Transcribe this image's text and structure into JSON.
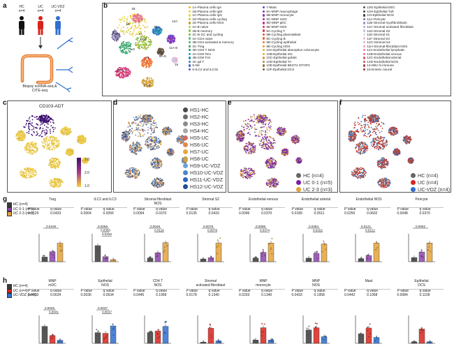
{
  "panel_labels": {
    "a": "a",
    "b": "b",
    "c": "c",
    "d": "d",
    "e": "e",
    "f": "f",
    "g": "g",
    "h": "h"
  },
  "panel_a": {
    "groups": [
      {
        "label": "HC",
        "n": "n=4",
        "color": "#111111"
      },
      {
        "label": "UC",
        "n": "n=4",
        "color": "#d9241c"
      },
      {
        "label": "UC-VDZ",
        "n": "n=4",
        "color": "#2f6fd1"
      }
    ],
    "caption_line1": "Biopsy scRNA-seq &",
    "caption_line2": "CITE-seq"
  },
  "panel_b": {
    "umap_labels": [
      "1B",
      "12A",
      "6A",
      "1D",
      "1A",
      "3C",
      "4A-E",
      "11A-E",
      "6A-E",
      "2B",
      "1-E",
      "8A-E",
      "15",
      "2A-C"
    ],
    "legend_col1": [
      {
        "t": "1A-Plasma cells IgA",
        "c": "#e6b800"
      },
      {
        "t": "1B-Plasma cells IgM",
        "c": "#f2d13a"
      },
      {
        "t": "1C-Plasma cells IgG",
        "c": "#d8e04a"
      },
      {
        "t": "1D-Plasma cells cycling",
        "c": "#c9c12b"
      },
      {
        "t": "1E-Plasma cells NOS",
        "c": "#b4a21e"
      },
      {
        "t": "2A-B naive",
        "c": "#a7d14b"
      },
      {
        "t": "2B-B memory",
        "c": "#8cc43c"
      },
      {
        "t": "2C-B GC and cycling",
        "c": "#6fb52e"
      },
      {
        "t": "3A-CD4 naive",
        "c": "#5fbf8a"
      },
      {
        "t": "3B-CD4 activated & memory",
        "c": "#3fae6b"
      },
      {
        "t": "3C-Treg",
        "c": "#2a9a58"
      },
      {
        "t": "3D-CD4 T NOS",
        "c": "#1f8a6a"
      },
      {
        "t": "4A-CD8 Tem",
        "c": "#1aa3a0"
      },
      {
        "t": "4B-CD8 Trm",
        "c": "#1e8fb5"
      },
      {
        "t": "4C-gd T",
        "c": "#2877c8"
      },
      {
        "t": "5-NK",
        "c": "#3f64c9"
      },
      {
        "t": "6-ILC2 and ILC3s",
        "c": "#5a5ad0"
      }
    ],
    "legend_col2": [
      {
        "t": "7-Mast",
        "c": "#6f3fc4"
      },
      {
        "t": "8A-MNP macrophage",
        "c": "#8a2fb8"
      },
      {
        "t": "8B-MNP monocyte",
        "c": "#a12aa8"
      },
      {
        "t": "8C-MNP mDC",
        "c": "#b82a96"
      },
      {
        "t": "8D-MNP pDC",
        "c": "#c92a80"
      },
      {
        "t": "8E-MNP NOS",
        "c": "#d82a68"
      },
      {
        "t": "9A-Cycling T",
        "c": "#e3334f"
      },
      {
        "t": "9B-Cycling plasmablast",
        "c": "#e84a3a"
      },
      {
        "t": "9C-Cycling B",
        "c": "#ec6330"
      },
      {
        "t": "9D-Cycling epithelial",
        "c": "#ef7b2a"
      },
      {
        "t": "9E-Cycling NOS",
        "c": "#f19228"
      },
      {
        "t": "10A-Epithelial absorptive colonocyte",
        "c": "#f3a72a"
      },
      {
        "t": "10B-Epithelial ISC",
        "c": "#e0b03a"
      },
      {
        "t": "10C-Epithelial goblet",
        "c": "#c7a040"
      },
      {
        "t": "10D-Epithelial TA",
        "c": "#a98b3e"
      },
      {
        "t": "10E-Epithelial BEST4 OTOP2",
        "c": "#8d7440"
      },
      {
        "t": "10F-Epithelial DCS",
        "c": "#735f42"
      }
    ],
    "legend_col3": [
      {
        "t": "10G-Epithelial EEC",
        "c": "#5e4f44"
      },
      {
        "t": "10H-Epithelial Tuft",
        "c": "#4d4248"
      },
      {
        "t": "10I-Epithelial NOS",
        "c": "#3d3a4e"
      },
      {
        "t": "11A-Pericyte",
        "c": "#7a6fa8"
      },
      {
        "t": "11B-Stromal myofibroblasts",
        "c": "#9a8fc6"
      },
      {
        "t": "11C-Stromal activated fibroblast",
        "c": "#b0a6d6"
      },
      {
        "t": "11D-Stromal S2",
        "c": "#c6bee2"
      },
      {
        "t": "11E-Stromal S1",
        "c": "#d8d2ea"
      },
      {
        "t": "11F-Stromal S3",
        "c": "#e8c5d8"
      },
      {
        "t": "11G-Stromal S4",
        "c": "#eeaec6"
      },
      {
        "t": "11H-Stromal-fibroblast NOS",
        "c": "#f197b2"
      },
      {
        "t": "12A-Endothelial lymphatic",
        "c": "#ef7f9c"
      },
      {
        "t": "12B-Endothelial venous",
        "c": "#e86a86"
      },
      {
        "t": "12C-Endothelial arterial",
        "c": "#d95a70"
      },
      {
        "t": "12D-Endothelial NOS",
        "c": "#c24e5c"
      },
      {
        "t": "14-Mito hi immune",
        "c": "#a8464c"
      },
      {
        "t": "15-Enteric neural",
        "c": "#8b3e3e"
      }
    ]
  },
  "panel_c": {
    "label": "CD103-ADT",
    "scale_max": "3.0",
    "scale_mid": "2.0",
    "scale_min": "1.0"
  },
  "panel_d": {
    "legend": [
      {
        "t": "HS1-HC",
        "c": "#4a4a4a"
      },
      {
        "t": "HS2-HC",
        "c": "#6d6d6d"
      },
      {
        "t": "HS3-HC",
        "c": "#8c8c8c"
      },
      {
        "t": "HS4-HC",
        "c": "#a6a6a6"
      },
      {
        "t": "HS5-UC",
        "c": "#d36b6b"
      },
      {
        "t": "HS6-UC",
        "c": "#e08a4a"
      },
      {
        "t": "HS7-UC",
        "c": "#e4a93e"
      },
      {
        "t": "HS8-UC",
        "c": "#caa24a"
      },
      {
        "t": "HS9-UC-VDZ",
        "c": "#6c9fd8"
      },
      {
        "t": "HS10-UC-VDZ",
        "c": "#4a84cc"
      },
      {
        "t": "HS11-UC-VDZ",
        "c": "#2f66b8"
      },
      {
        "t": "HS12-UC-VDZ",
        "c": "#1f4b99"
      }
    ]
  },
  "panel_e": {
    "legend": [
      {
        "t": "HC (n=4)",
        "c": "#666666"
      },
      {
        "t": "UC 0-1 (n=5)",
        "c": "#7b1fa2"
      },
      {
        "t": "UC 2-3 (n=3)",
        "c": "#e5a23a"
      }
    ]
  },
  "panel_f": {
    "legend": [
      {
        "t": "HC (n=4)",
        "c": "#666666"
      },
      {
        "t": "UC (n=4)",
        "c": "#d9241c"
      },
      {
        "t": "UC-VDZ (n=4)",
        "c": "#2f6fd1"
      }
    ]
  },
  "panel_g": {
    "legend": [
      {
        "t": "HC (n=4)",
        "c": "#3a3a3a"
      },
      {
        "t": "UC 0-1 (n=5)",
        "c": "#8e44ad"
      },
      {
        "t": "UC 2-3 (n=3)",
        "c": "#e5a23a"
      }
    ],
    "ylabel": "Cell freq (% total)",
    "plots": [
      {
        "title": [
          "Treg"
        ],
        "p": "0.0129",
        "q": "0.0433",
        "sig": [
          "0.0109"
        ],
        "vals": [
          1.2,
          2.6,
          4.8
        ]
      },
      {
        "title": [
          "ILC2 and ILC3"
        ],
        "p": "0.0004",
        "q": "0.0056",
        "sig": [
          "0.0056",
          "0.0350",
          "0.0150"
        ],
        "vals": [
          1.6,
          0.5,
          0.2
        ]
      },
      {
        "title": [
          "Stromal fibroblast",
          "NOS"
        ],
        "p": "0.0094",
        "q": "0.0370",
        "sig": [
          "0.0049",
          "0.0116"
        ],
        "vals": [
          1.3,
          3.2,
          6.8
        ]
      },
      {
        "title": [
          "Stromal S2"
        ],
        "p": "0.0135",
        "q": "0.0433",
        "sig": [
          "0.0078",
          "0.0078"
        ],
        "vals": [
          0.8,
          1.2,
          5.6
        ]
      },
      {
        "title": [
          "Endothelial venous"
        ],
        "p": "0.0096",
        "q": "0.0370",
        "sig": [
          "0.0088",
          "0.0374"
        ],
        "vals": [
          1.0,
          2.6,
          5.2
        ]
      },
      {
        "title": [
          "Endothelial arterial"
        ],
        "p": "0.0189",
        "q": "0.0511",
        "sig": [
          "0.0354",
          "0.0162"
        ],
        "vals": [
          0.6,
          1.4,
          3.0
        ]
      },
      {
        "title": [
          "Endothelial NOS"
        ],
        "p": "0.0250",
        "q": "0.0602",
        "sig": [
          "0.0121",
          "0.0121"
        ],
        "vals": [
          0.8,
          1.6,
          4.8
        ]
      },
      {
        "title": [
          "Pericyte"
        ],
        "p": "0.0048",
        "q": "0.0370",
        "sig": [
          "0.0052"
        ],
        "vals": [
          1.2,
          2.8,
          5.4
        ]
      }
    ]
  },
  "panel_h": {
    "legend": [
      {
        "t": "HC (n=4)",
        "c": "#3a3a3a"
      },
      {
        "t": "UC (n=4)",
        "c": "#d9241c"
      },
      {
        "t": "UC-VDZ (n=4)",
        "c": "#2f6fd1"
      }
    ],
    "ylabel": "Cell freq (% total)",
    "plots": [
      {
        "title": [
          "MNP",
          "mDC"
        ],
        "p": "0.0033",
        "q": "0.0634",
        "sig": [
          "0.0046",
          "0.0041"
        ],
        "vals": [
          2.2,
          1.0,
          0.4
        ]
      },
      {
        "title": [
          "Epithelial",
          "NOS"
        ],
        "p": "0.0036",
        "q": "0.0634",
        "sig": [
          "0.0037",
          "0.0037"
        ],
        "vals": [
          1.6,
          1.5,
          2.6
        ]
      },
      {
        "title": [
          "CD4 T",
          "NOS"
        ],
        "p": "0.0445",
        "q": "0.1958",
        "sig": [],
        "vals": [
          1.4,
          1.6,
          2.2
        ]
      },
      {
        "title": [
          "Stromal",
          "activated fibroblast"
        ],
        "p": "0.0178",
        "q": "0.1340",
        "sig": [],
        "vals": [
          0.1,
          1.2,
          0.2
        ]
      },
      {
        "title": [
          "MNP",
          "monocyte"
        ],
        "p": "0.0203",
        "q": "0.1340",
        "sig": [],
        "vals": [
          0.3,
          1.4,
          0.3
        ]
      },
      {
        "title": [
          "MNP",
          "NOS"
        ],
        "p": "0.0433",
        "q": "0.1958",
        "sig": [],
        "vals": [
          1.2,
          1.4,
          0.6
        ]
      },
      {
        "title": [
          "Mast"
        ],
        "p": "0.0442",
        "q": "0.1958",
        "sig": [],
        "vals": [
          0.8,
          1.3,
          0.5
        ]
      },
      {
        "title": [
          "Epithelial",
          "DCS"
        ],
        "p": "0.0084",
        "q": "0.1109",
        "sig": [],
        "vals": [
          0.1,
          1.0,
          0.1
        ]
      }
    ]
  },
  "pq": {
    "p": "P value",
    "q": "q value"
  }
}
